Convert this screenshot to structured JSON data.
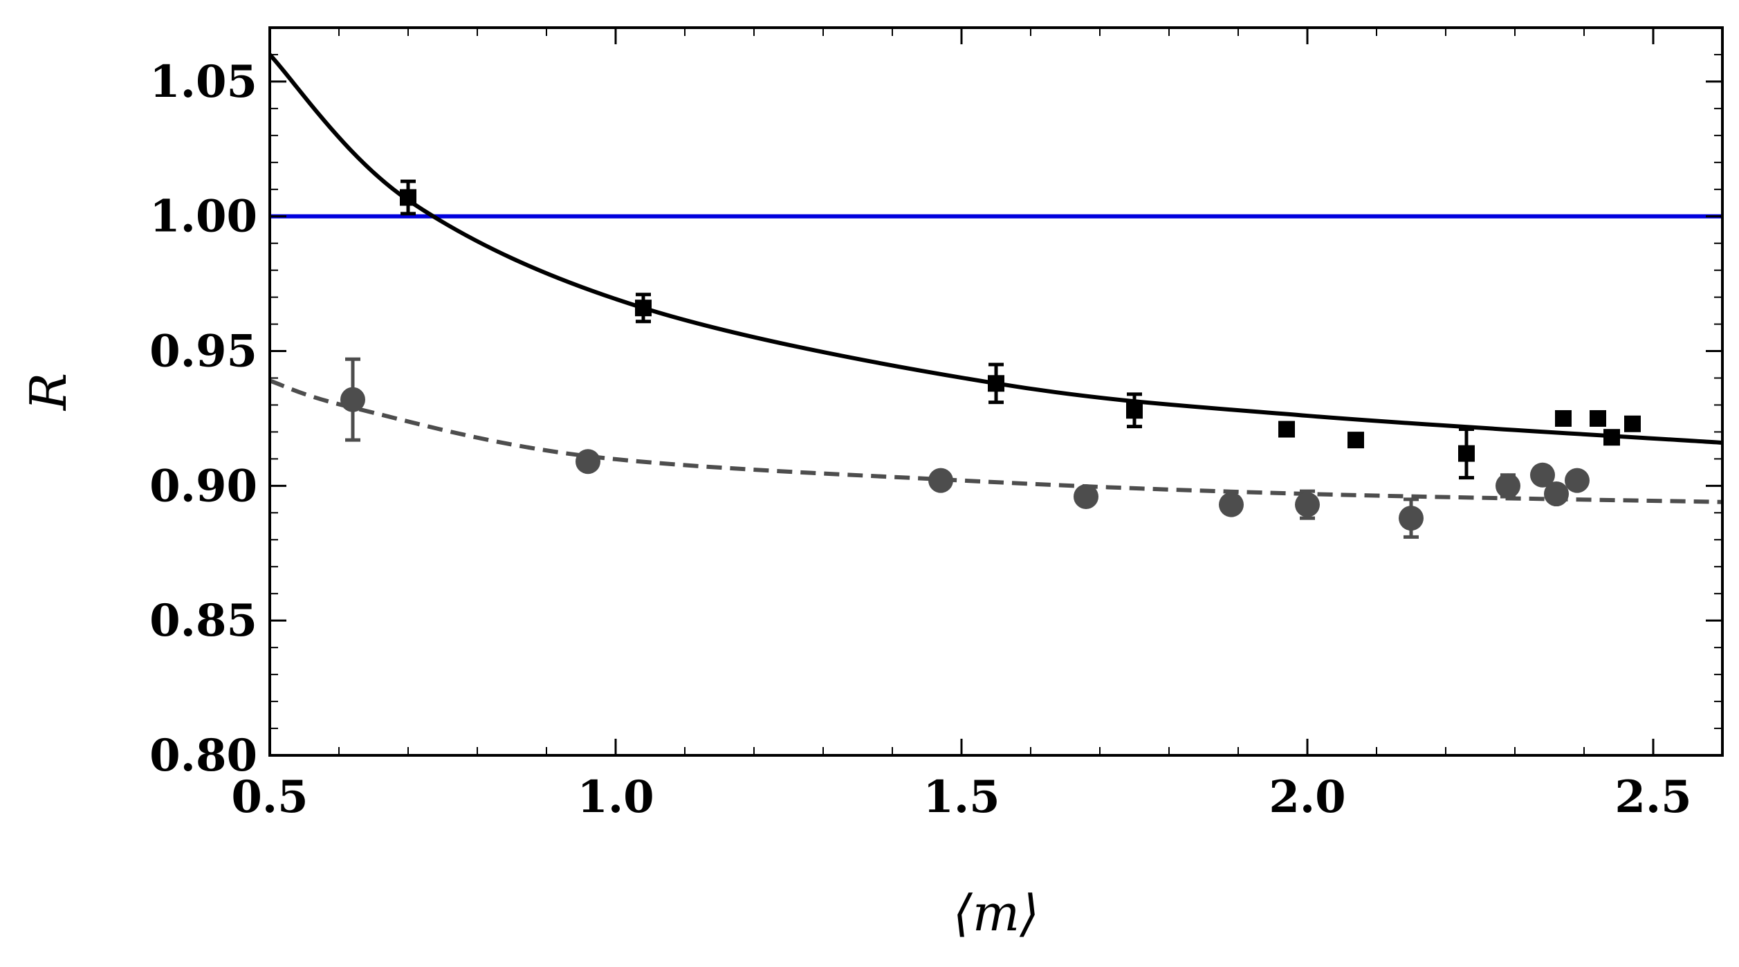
{
  "chart_data": {
    "type": "scatter",
    "title": "",
    "xlabel": "⟨m⟩",
    "ylabel": "R",
    "xlim": [
      0.5,
      2.6
    ],
    "ylim": [
      0.8,
      1.07
    ],
    "x_ticks": [
      0.5,
      1.0,
      1.5,
      2.0,
      2.5
    ],
    "x_tick_labels": [
      "0.5",
      "1.0",
      "1.5",
      "2.0",
      "2.5"
    ],
    "y_ticks": [
      0.8,
      0.85,
      0.9,
      0.95,
      1.0,
      1.05
    ],
    "y_tick_labels": [
      "0.80",
      "0.85",
      "0.90",
      "0.95",
      "1.00",
      "1.05"
    ],
    "x_minor_step": 0.1,
    "y_minor_step": 0.01,
    "grid": false,
    "reference_line": {
      "y": 1.0,
      "color": "#0000dd"
    },
    "series": [
      {
        "name": "squares",
        "marker": "square",
        "color": "#000000",
        "points": [
          {
            "x": 0.7,
            "y": 1.007,
            "err": 0.006
          },
          {
            "x": 1.04,
            "y": 0.966,
            "err": 0.005
          },
          {
            "x": 1.55,
            "y": 0.938,
            "err": 0.007
          },
          {
            "x": 1.75,
            "y": 0.928,
            "err": 0.006
          },
          {
            "x": 1.97,
            "y": 0.921,
            "err": 0.002
          },
          {
            "x": 2.07,
            "y": 0.917,
            "err": 0.002
          },
          {
            "x": 2.23,
            "y": 0.912,
            "err": 0.009
          },
          {
            "x": 2.37,
            "y": 0.925,
            "err": 0.002
          },
          {
            "x": 2.42,
            "y": 0.925,
            "err": 0.002
          },
          {
            "x": 2.44,
            "y": 0.918,
            "err": 0.002
          },
          {
            "x": 2.47,
            "y": 0.923,
            "err": 0.002
          }
        ]
      },
      {
        "name": "circles",
        "marker": "circle",
        "color": "#4d4d4d",
        "points": [
          {
            "x": 0.62,
            "y": 0.932,
            "err": 0.015
          },
          {
            "x": 0.96,
            "y": 0.909,
            "err": 0.002
          },
          {
            "x": 1.47,
            "y": 0.902,
            "err": 0.003
          },
          {
            "x": 1.68,
            "y": 0.896,
            "err": 0.003
          },
          {
            "x": 1.89,
            "y": 0.893,
            "err": 0.003
          },
          {
            "x": 2.0,
            "y": 0.893,
            "err": 0.005
          },
          {
            "x": 2.15,
            "y": 0.888,
            "err": 0.007
          },
          {
            "x": 2.29,
            "y": 0.9,
            "err": 0.004
          },
          {
            "x": 2.34,
            "y": 0.904,
            "err": 0.003
          },
          {
            "x": 2.36,
            "y": 0.897,
            "err": 0.002
          },
          {
            "x": 2.39,
            "y": 0.902,
            "err": 0.003
          }
        ]
      }
    ],
    "fits": [
      {
        "name": "solid-fit",
        "style": "solid",
        "color": "#000000",
        "points": [
          [
            0.5,
            1.06
          ],
          [
            0.7,
            1.006
          ],
          [
            1.04,
            0.966
          ],
          [
            1.55,
            0.938
          ],
          [
            2.0,
            0.926
          ],
          [
            2.6,
            0.916
          ]
        ]
      },
      {
        "name": "dashed-fit",
        "style": "dashed",
        "color": "#4d4d4d",
        "points": [
          [
            0.5,
            0.939
          ],
          [
            0.62,
            0.929
          ],
          [
            0.96,
            0.911
          ],
          [
            1.5,
            0.902
          ],
          [
            2.0,
            0.897
          ],
          [
            2.6,
            0.894
          ]
        ]
      }
    ]
  }
}
